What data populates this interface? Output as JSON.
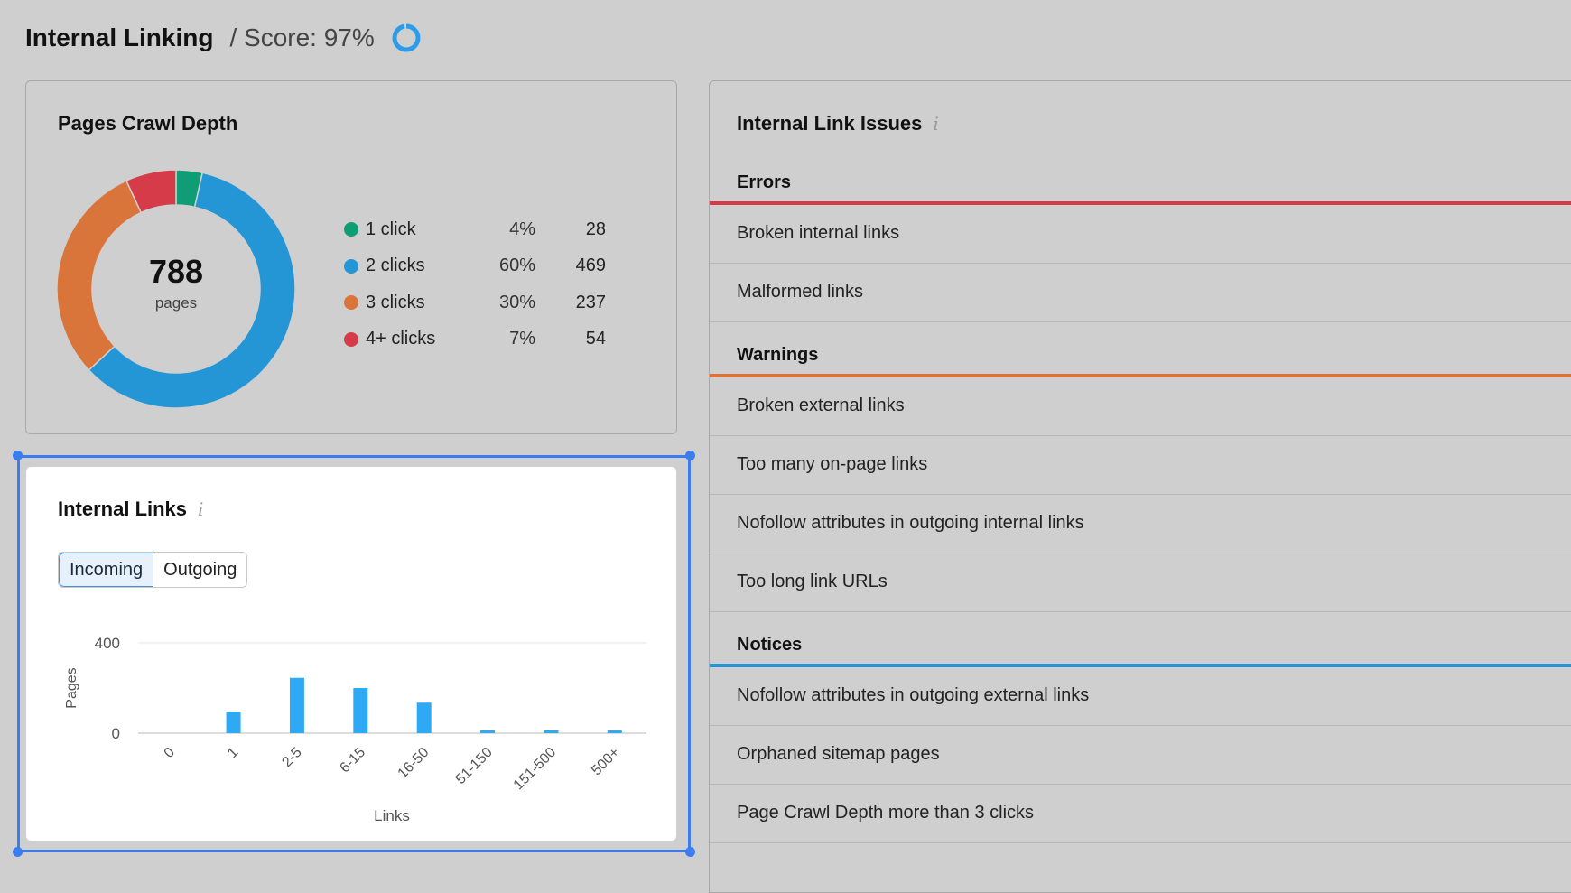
{
  "header": {
    "title": "Internal Linking",
    "score_label": "/ Score: 97%",
    "score_value": 97,
    "score_color": "#2d9ce8"
  },
  "crawl_depth": {
    "title": "Pages Crawl Depth",
    "total": "788",
    "total_label": "pages",
    "chart_data": {
      "type": "pie",
      "labels": [
        "1 click",
        "2 clicks",
        "3 clicks",
        "4+ clicks"
      ],
      "percents": [
        "4%",
        "60%",
        "30%",
        "7%"
      ],
      "values": [
        28,
        469,
        237,
        54
      ],
      "colors": [
        "#0e9d74",
        "#2496d6",
        "#d9743a",
        "#d53b48"
      ]
    }
  },
  "internal_links": {
    "title": "Internal Links",
    "info": "i",
    "tabs": [
      "Incoming",
      "Outgoing"
    ],
    "active_tab": "Incoming",
    "chart_data": {
      "type": "bar",
      "categories": [
        "0",
        "1",
        "2-5",
        "6-15",
        "16-50",
        "51-150",
        "151-500",
        "500+"
      ],
      "values": [
        0,
        95,
        245,
        200,
        135,
        12,
        12,
        12
      ],
      "ylabel": "Pages",
      "xlabel": "Links",
      "yticks": [
        "0",
        "400"
      ],
      "ylim": [
        0,
        400
      ],
      "color": "#2eaaf4"
    }
  },
  "issues": {
    "title": "Internal Link Issues",
    "info": "i",
    "groups": [
      {
        "name": "Errors",
        "color": "#d53b48",
        "items": [
          "Broken internal links",
          "Malformed links"
        ]
      },
      {
        "name": "Warnings",
        "color": "#d9743a",
        "items": [
          "Broken external links",
          "Too many on-page links",
          "Nofollow attributes in outgoing internal links",
          "Too long link URLs"
        ]
      },
      {
        "name": "Notices",
        "color": "#2496d6",
        "items": [
          "Nofollow attributes in outgoing external links",
          "Orphaned sitemap pages",
          "Page Crawl Depth more than 3 clicks"
        ]
      }
    ]
  }
}
